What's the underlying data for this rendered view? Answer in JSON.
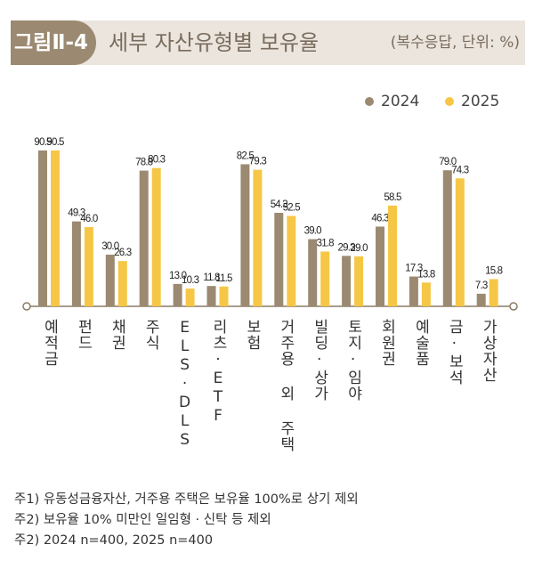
{
  "header": {
    "figure_label": "그림Ⅱ-4",
    "title": "세부 자산유형별 보유율",
    "unit": "(복수응답, 단위: %)"
  },
  "colors": {
    "2024": "#9b8a71",
    "2025": "#f6c746",
    "band": "#ebe5de"
  },
  "chart_data": {
    "type": "bar",
    "title": "세부 자산유형별 보유율",
    "categories": [
      "예적금",
      "펀드",
      "채권",
      "주식",
      "ELS·DLS",
      "리츠·ETF",
      "보험",
      "거주용 외 주택",
      "빌딩·상가",
      "토지·임야",
      "회원권",
      "예술품",
      "금·보석",
      "가상자산"
    ],
    "series": [
      {
        "name": "2024",
        "values": [
          90.5,
          49.3,
          30.0,
          78.8,
          13.0,
          11.8,
          82.5,
          54.3,
          39.0,
          29.3,
          46.3,
          17.3,
          79.0,
          7.3
        ]
      },
      {
        "name": "2025",
        "values": [
          90.5,
          46.0,
          26.3,
          80.3,
          10.3,
          11.5,
          79.3,
          52.5,
          31.8,
          29.0,
          58.5,
          13.8,
          74.3,
          15.8
        ]
      }
    ],
    "ylim": [
      0,
      100
    ],
    "grid": false,
    "legend": "top-right"
  },
  "notes": [
    "주1) 유동성금융자산, 거주용 주택은 보유율 100%로 상기 제외",
    "주2) 보유율 10% 미만인 일임형 · 신탁 등 제외",
    "주2) 2024 n=400, 2025 n=400"
  ]
}
